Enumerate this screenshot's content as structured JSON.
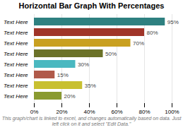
{
  "chart_data": {
    "type": "bar",
    "orientation": "horizontal",
    "title": "Horizontal Bar Graph With Percentages",
    "caption": "This graph/chart is linked to excel, and changes automatically based on data. Just left click on it and select \"Edit Data.\"",
    "categories": [
      "Text Here",
      "Text Here",
      "Text Here",
      "Text Here",
      "Text Here",
      "Text Here",
      "Text Here",
      "Text Here"
    ],
    "values": [
      95,
      80,
      70,
      50,
      30,
      15,
      35,
      20
    ],
    "value_labels": [
      "95%",
      "80%",
      "70%",
      "50%",
      "30%",
      "15%",
      "35%",
      "20%"
    ],
    "data_labels": true,
    "colors": [
      "#2e8080",
      "#a03428",
      "#c9a020",
      "#6b7228",
      "#4ab8c0",
      "#b05a4a",
      "#c8c030",
      "#8a9a30"
    ],
    "xlim": [
      0,
      100
    ],
    "xticks": [
      {
        "value": 0,
        "label": "0%"
      },
      {
        "value": 20,
        "label": "20%"
      },
      {
        "value": 40,
        "label": "40%"
      },
      {
        "value": 60,
        "label": "60%"
      },
      {
        "value": 80,
        "label": "80%"
      },
      {
        "value": 100,
        "label": "100%"
      }
    ],
    "grid": true
  }
}
